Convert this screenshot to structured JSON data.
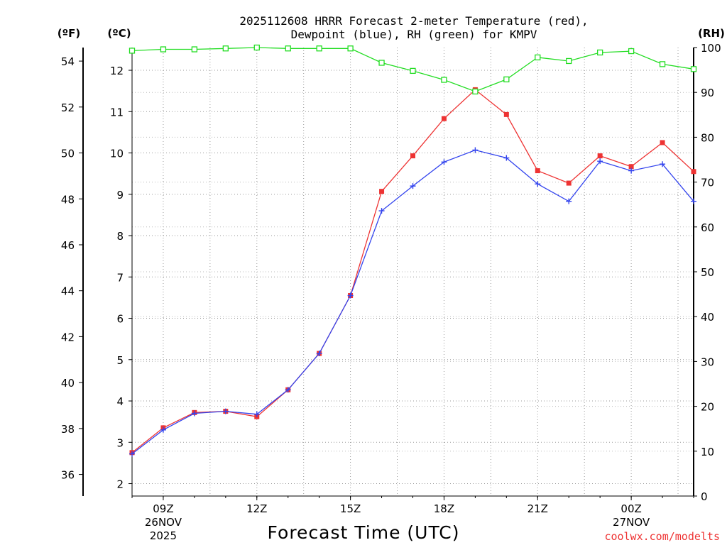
{
  "chart_data": {
    "type": "line",
    "title_line1": "2025112608 HRRR Forecast 2-meter Temperature (red),",
    "title_line2": "Dewpoint (blue), RH (green) for KMPV",
    "xlabel": "Forecast Time (UTC)",
    "credit": "coolwx.com/modelts",
    "units": {
      "f": "(ºF)",
      "c": "(ºC)",
      "rh": "(RH)"
    },
    "x_hours": [
      8,
      9,
      10,
      11,
      12,
      13,
      14,
      15,
      16,
      17,
      18,
      19,
      20,
      21,
      22,
      23,
      24,
      25,
      26
    ],
    "x_range": [
      8,
      26
    ],
    "ylim_c": [
      1.7,
      12.55
    ],
    "ylim_rh": [
      0,
      100
    ],
    "y_ticks_c": [
      2,
      3,
      4,
      5,
      6,
      7,
      8,
      9,
      10,
      11,
      12
    ],
    "y_ticks_f": [
      36,
      38,
      40,
      42,
      44,
      46,
      48,
      50,
      52,
      54
    ],
    "y_ticks_rh": [
      0,
      10,
      20,
      30,
      40,
      50,
      60,
      70,
      80,
      90,
      100
    ],
    "x_ticks": [
      {
        "hour": 9,
        "label": "09Z",
        "label2": "26NOV",
        "label3": "2025"
      },
      {
        "hour": 12,
        "label": "12Z",
        "label2": "",
        "label3": ""
      },
      {
        "hour": 15,
        "label": "15Z",
        "label2": "",
        "label3": ""
      },
      {
        "hour": 18,
        "label": "18Z",
        "label2": "",
        "label3": ""
      },
      {
        "hour": 21,
        "label": "21Z",
        "label2": "",
        "label3": ""
      },
      {
        "hour": 24,
        "label": "00Z",
        "label2": "27NOV",
        "label3": ""
      }
    ],
    "series": [
      {
        "name": "Temperature",
        "unit": "C",
        "color": "#ee3333",
        "values": [
          2.75,
          3.35,
          3.72,
          3.75,
          3.62,
          4.27,
          5.15,
          6.55,
          9.07,
          9.93,
          10.83,
          11.53,
          10.93,
          9.57,
          9.27,
          9.93,
          9.67,
          10.25,
          9.55
        ]
      },
      {
        "name": "Dewpoint",
        "unit": "C",
        "color": "#3344ee",
        "values": [
          2.72,
          3.3,
          3.7,
          3.75,
          3.68,
          4.27,
          5.15,
          6.55,
          8.6,
          9.2,
          9.78,
          10.07,
          9.88,
          9.25,
          8.83,
          9.8,
          9.57,
          9.73,
          8.83
        ]
      },
      {
        "name": "RH",
        "unit": "%",
        "color": "#22dd22",
        "values": [
          99.3,
          99.6,
          99.6,
          99.8,
          100,
          99.8,
          99.8,
          99.8,
          96.6,
          94.8,
          92.8,
          90.2,
          92.9,
          97.8,
          97.0,
          98.9,
          99.2,
          96.3,
          95.2
        ]
      }
    ]
  }
}
